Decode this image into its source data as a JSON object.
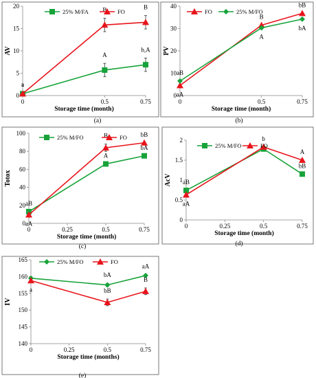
{
  "chart_data": [
    {
      "type": "line",
      "panel_label": "(a)",
      "ylabel": "AV",
      "xlabel": "Storage time (month)",
      "x_ticks": [
        "0",
        "0.5",
        "0.75"
      ],
      "y_ticks": [
        "0",
        "5",
        "10",
        "15",
        "20"
      ],
      "ylim": [
        0,
        20
      ],
      "x": [
        0,
        0.5,
        0.75
      ],
      "grid": false,
      "legend_position": "top",
      "series": [
        {
          "name": "25% M/FA",
          "values": [
            0.4,
            5.7,
            6.9
          ],
          "color": "#17a33a",
          "marker": "square",
          "labels": [
            "a",
            "A",
            "b,A"
          ],
          "errors": [
            0.2,
            1.5,
            1.5
          ]
        },
        {
          "name": "FO",
          "values": [
            0.4,
            15.8,
            16.4
          ],
          "color": "#e8141b",
          "marker": "triangle",
          "labels": [
            "a",
            "B",
            "B"
          ],
          "errors": [
            0.2,
            1.5,
            1.5
          ]
        }
      ]
    },
    {
      "type": "line",
      "panel_label": "(b)",
      "ylabel": "PV",
      "xlabel": "Storage time (month)",
      "x_ticks": [
        "0",
        "0.5",
        "0.75"
      ],
      "y_ticks": [
        "0",
        "10",
        "20",
        "30",
        "40"
      ],
      "ylim": [
        0,
        40
      ],
      "x": [
        0,
        0.5,
        0.75
      ],
      "grid": false,
      "legend_position": "top",
      "series": [
        {
          "name": "FO",
          "values": [
            4.5,
            31.5,
            36.8
          ],
          "color": "#e8141b",
          "marker": "triangle",
          "labels": [
            "aA",
            "B",
            "bB"
          ],
          "errors": [
            0,
            0,
            0
          ]
        },
        {
          "name": "25% M/FO",
          "values": [
            6.5,
            30.3,
            34.2
          ],
          "color": "#17a33a",
          "marker": "diamond",
          "labels": [
            "aB",
            "A",
            "bA"
          ],
          "errors": [
            0,
            0,
            0
          ]
        }
      ]
    },
    {
      "type": "line",
      "panel_label": "(c)",
      "ylabel": "Totox",
      "xlabel": "Storage time (month)",
      "x_ticks": [
        "0",
        "0.25",
        "0.5",
        "0.75"
      ],
      "y_ticks": [
        "0",
        "20",
        "40",
        "60",
        "80",
        "100"
      ],
      "ylim": [
        0,
        100
      ],
      "x": [
        0,
        0.5,
        0.75
      ],
      "grid": false,
      "legend_position": "top",
      "series": [
        {
          "name": "25% M/FO",
          "values": [
            13,
            66,
            75
          ],
          "color": "#17a33a",
          "marker": "square",
          "labels": [
            "aB",
            "A",
            "bA"
          ],
          "errors": [
            0,
            0,
            0
          ]
        },
        {
          "name": "FO",
          "values": [
            9.5,
            84,
            89.5
          ],
          "color": "#e8141b",
          "marker": "triangle",
          "labels": [
            "aA",
            "B",
            "bB"
          ],
          "errors": [
            0,
            4,
            0
          ]
        }
      ]
    },
    {
      "type": "line",
      "panel_label": "(d)",
      "ylabel": "AcV",
      "xlabel": "Storage time (month)",
      "x_ticks": [
        "0",
        "0.25",
        "0.5",
        "0.75"
      ],
      "y_ticks": [
        "0",
        "0.5",
        "1",
        "1.5",
        "2"
      ],
      "ylim": [
        0,
        2
      ],
      "x": [
        0,
        0.5,
        0.75
      ],
      "grid": false,
      "legend_position": "top",
      "series": [
        {
          "name": "25% M/FO",
          "values": [
            0.74,
            1.78,
            1.15
          ],
          "color": "#17a33a",
          "marker": "square",
          "labels": [
            "aB",
            "",
            "bB"
          ],
          "errors": [
            0,
            0,
            0
          ]
        },
        {
          "name": "FO",
          "values": [
            0.63,
            1.83,
            1.5
          ],
          "color": "#e8141b",
          "marker": "triangle",
          "labels": [
            "aA",
            "b",
            "A"
          ],
          "errors": [
            0,
            0,
            0
          ]
        }
      ]
    },
    {
      "type": "line",
      "panel_label": "(e)",
      "ylabel": "IV",
      "xlabel": "Storage time (months)",
      "x_ticks": [
        "0",
        "0.25",
        "0.5",
        "0.75"
      ],
      "y_ticks": [
        "140",
        "145",
        "150",
        "155",
        "160",
        "165"
      ],
      "ylim": [
        140,
        165
      ],
      "x": [
        0,
        0.5,
        0.75
      ],
      "grid": false,
      "legend_position": "top",
      "series": [
        {
          "name": "25% M/FO",
          "values": [
            159.5,
            157.5,
            160.3
          ],
          "color": "#17a33a",
          "marker": "diamond",
          "labels": [
            "",
            "bA",
            "aA"
          ],
          "errors": [
            0.5,
            0.5,
            0.3
          ]
        },
        {
          "name": "FO",
          "values": [
            158.8,
            152.3,
            155.6
          ],
          "color": "#e8141b",
          "marker": "triangle",
          "labels": [
            "a",
            "bB",
            "B"
          ],
          "errors": [
            0.5,
            1.0,
            1.0
          ]
        }
      ]
    }
  ]
}
